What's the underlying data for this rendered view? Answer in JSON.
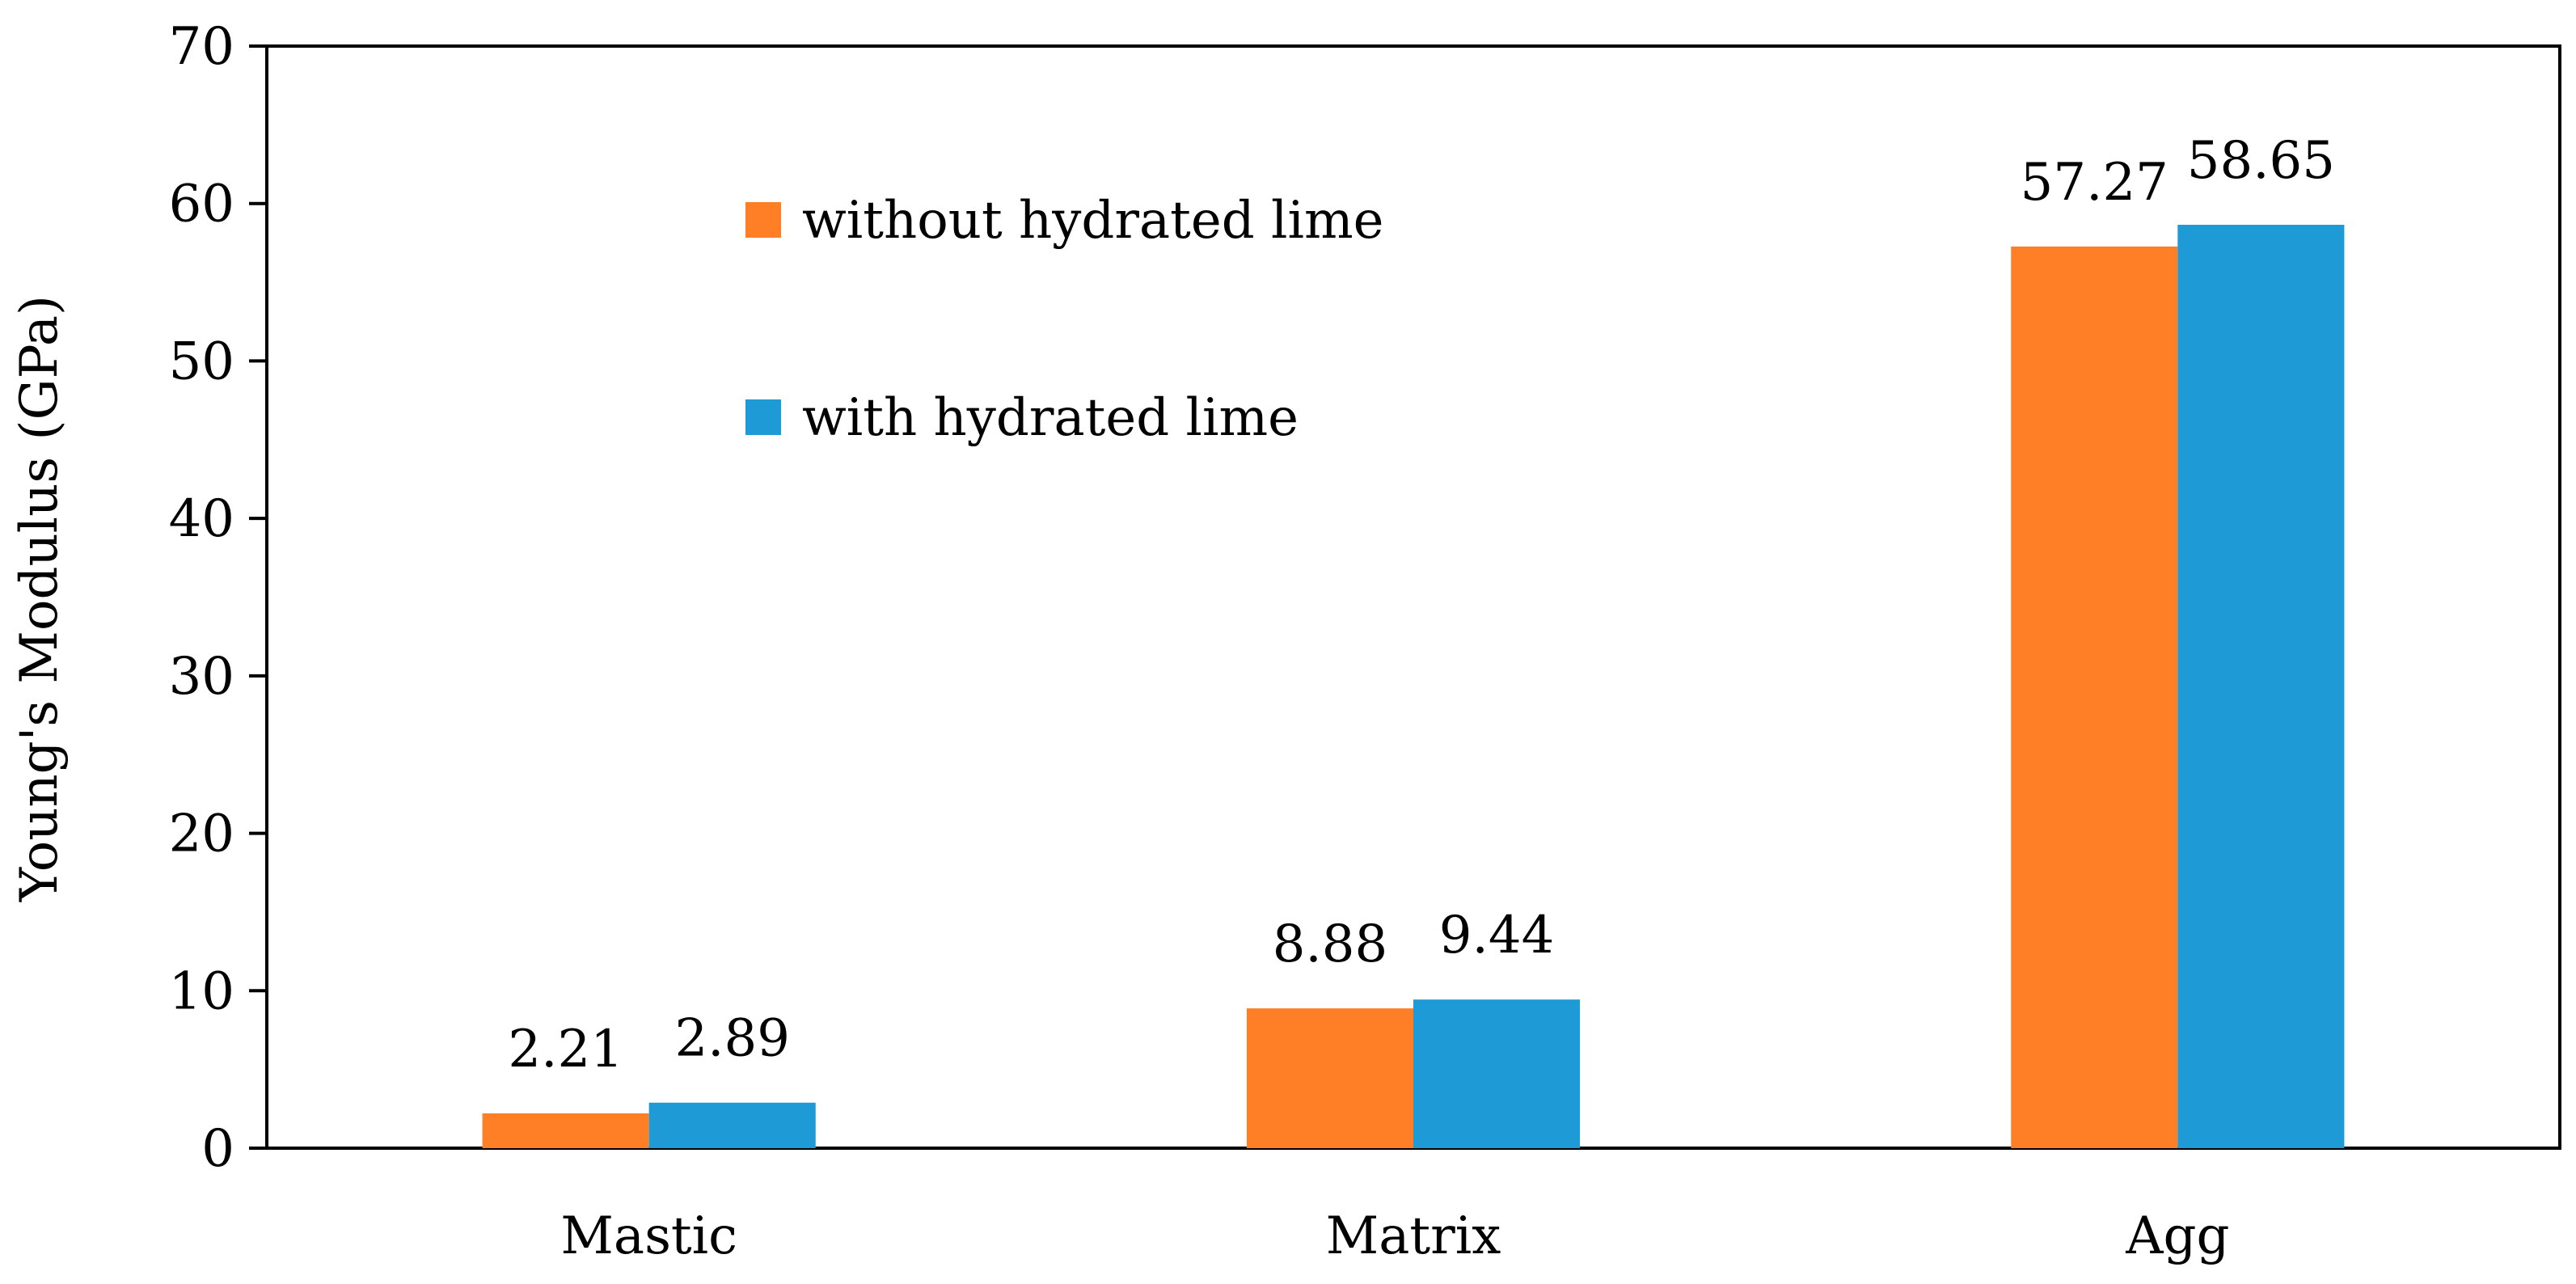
{
  "chart_data": {
    "type": "bar",
    "title": "",
    "xlabel": "",
    "ylabel": "Young's Modulus (GPa)",
    "ylim": [
      0,
      70
    ],
    "yticks": [
      0,
      10,
      20,
      30,
      40,
      50,
      60,
      70
    ],
    "grid": false,
    "legend_placement": "top-center",
    "categories": [
      "Mastic",
      "Matrix",
      "Agg"
    ],
    "series": [
      {
        "name": "without hydrated lime",
        "color": "#FF7F27",
        "values": [
          2.21,
          8.88,
          57.27
        ],
        "labels": [
          "2.21",
          "8.88",
          "57.27"
        ]
      },
      {
        "name": "with hydrated lime",
        "color": "#1E9BD7",
        "values": [
          2.89,
          9.44,
          58.65
        ],
        "labels": [
          "2.89",
          "9.44",
          "58.65"
        ]
      }
    ]
  }
}
